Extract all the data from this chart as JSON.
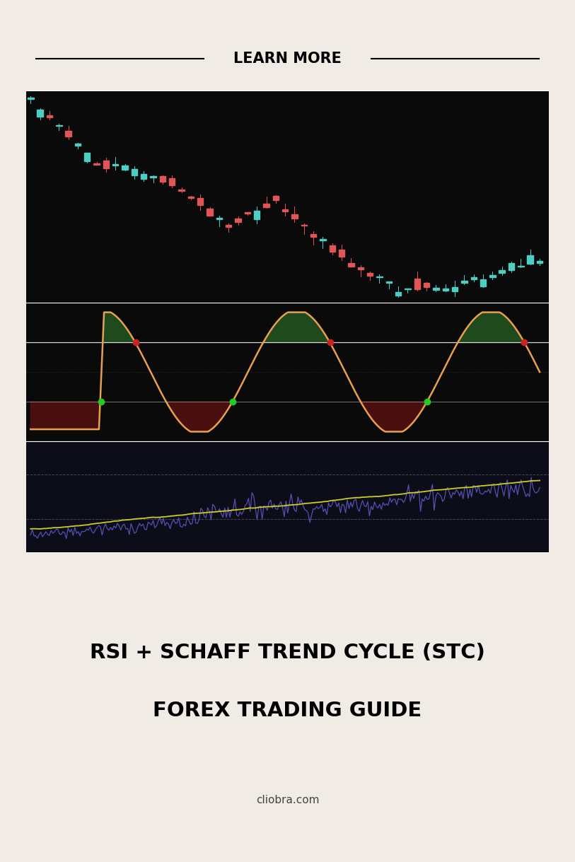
{
  "bg_color": "#f0ebe4",
  "chart_bg": "#0a0a0a",
  "rsi_bg": "#0d0d1a",
  "title_text": "LEARN MORE",
  "line1_text": "RSI + SCHAFF TREND CYCLE (STC)",
  "line2_text": "FOREX TRADING GUIDE",
  "footer_text": "cliobra.com",
  "bull_color": "#4ecdc4",
  "bear_color": "#e05555",
  "stc_line_color": "#e8a050",
  "stc_up_fill": "#1e4a1e",
  "stc_down_fill": "#4a0f0f",
  "rsi_line_color": "#5555bb",
  "rsi_ma_color": "#cccc22",
  "dot_red": "#cc2222",
  "dot_green": "#22cc22",
  "upper_level": 75,
  "lower_level": 25,
  "mid_level": 50,
  "rsi_upper": 70,
  "rsi_lower": 30
}
